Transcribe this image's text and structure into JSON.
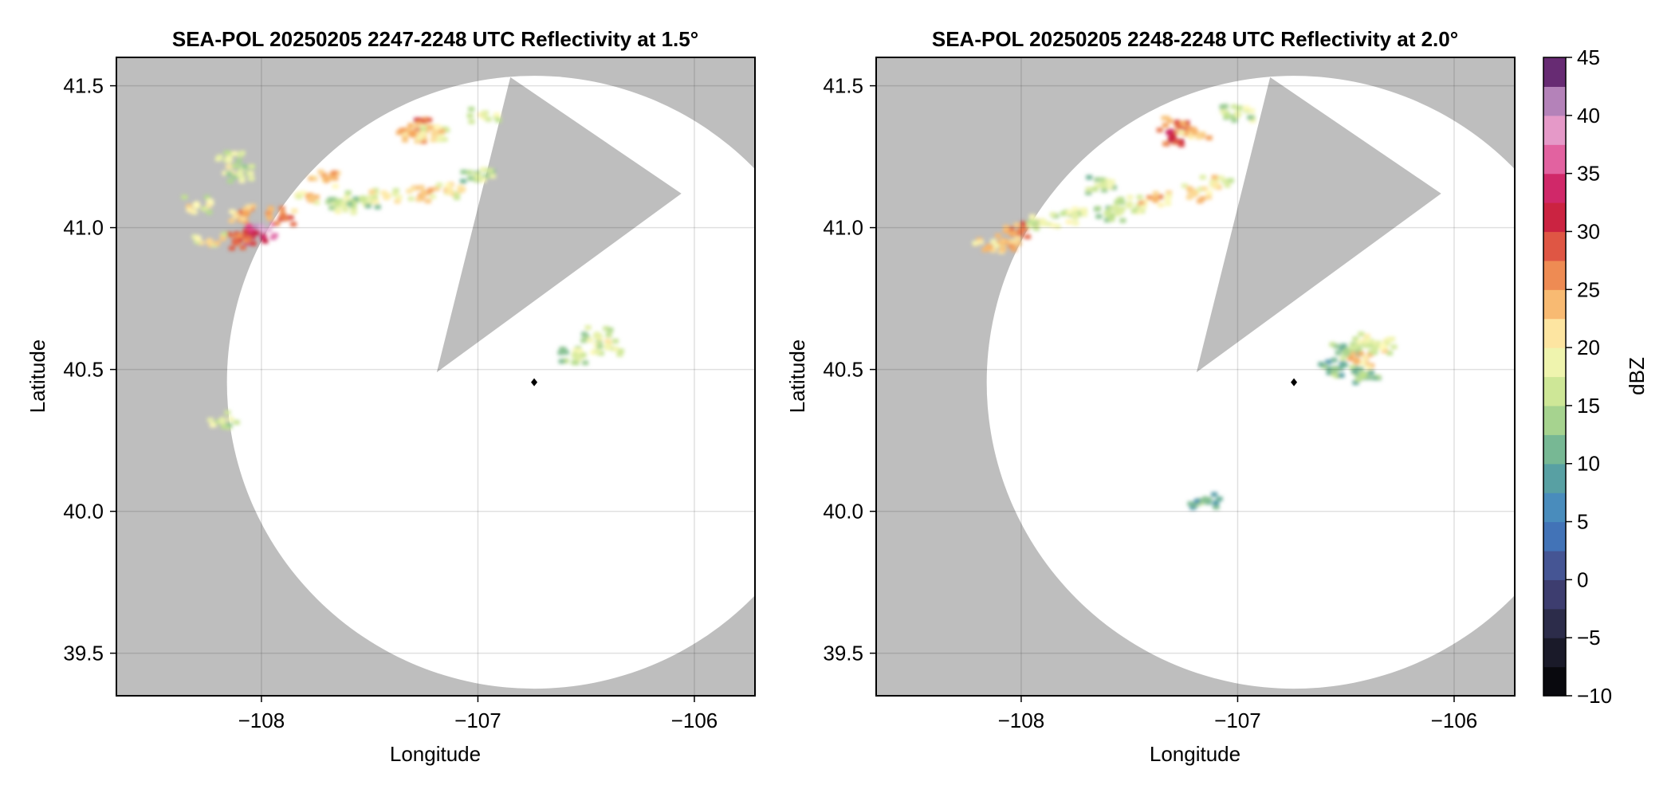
{
  "figure": {
    "colorbar": {
      "label": "dBZ",
      "min": -10,
      "max": 45,
      "step": 2.5,
      "ticks": [
        -10,
        -5,
        0,
        5,
        10,
        15,
        20,
        25,
        30,
        35,
        40,
        45
      ],
      "tick_labels": [
        "−10",
        "−5",
        "0",
        "5",
        "10",
        "15",
        "20",
        "25",
        "30",
        "35",
        "40",
        "45"
      ]
    }
  },
  "chart_data": [
    {
      "type": "heatmap",
      "title": "SEA-POL 20250205 2247-2248 UTC Reflectivity at 1.5°",
      "xlabel": "Longitude",
      "ylabel": "Latitude",
      "xlim": [
        -108.67,
        -105.72
      ],
      "ylim": [
        39.35,
        41.6
      ],
      "xticks": [
        -108,
        -107,
        -106
      ],
      "xtick_labels": [
        "−108",
        "−107",
        "−106"
      ],
      "yticks": [
        39.5,
        40.0,
        40.5,
        41.0,
        41.5
      ],
      "ytick_labels": [
        "39.5",
        "40.0",
        "40.5",
        "41.0",
        "41.5"
      ],
      "grid": true,
      "colorbar_label": "dBZ",
      "radar": {
        "lon": -106.74,
        "lat": 40.455,
        "range_lat_deg": 1.08
      },
      "blocked_sector_vertices": [
        [
          -107.19,
          40.49
        ],
        [
          -106.85,
          41.53
        ],
        [
          -106.06,
          41.12
        ]
      ],
      "echoes": [
        {
          "lon": -107.25,
          "lat": 41.36,
          "dbz": 29
        },
        {
          "lon": -107.3,
          "lat": 41.33,
          "dbz": 25
        },
        {
          "lon": -107.2,
          "lat": 41.33,
          "dbz": 22
        },
        {
          "lon": -106.97,
          "lat": 41.4,
          "dbz": 18
        },
        {
          "lon": -108.07,
          "lat": 41.05,
          "dbz": 25
        },
        {
          "lon": -108.0,
          "lat": 40.99,
          "dbz": 40
        },
        {
          "lon": -108.05,
          "lat": 40.97,
          "dbz": 33
        },
        {
          "lon": -107.9,
          "lat": 41.04,
          "dbz": 27
        },
        {
          "lon": -107.77,
          "lat": 41.1,
          "dbz": 23
        },
        {
          "lon": -107.7,
          "lat": 41.17,
          "dbz": 24
        },
        {
          "lon": -108.12,
          "lat": 40.95,
          "dbz": 28
        },
        {
          "lon": -108.24,
          "lat": 40.95,
          "dbz": 22
        },
        {
          "lon": -107.62,
          "lat": 41.08,
          "dbz": 18
        },
        {
          "lon": -107.53,
          "lat": 41.1,
          "dbz": 16
        },
        {
          "lon": -107.42,
          "lat": 41.11,
          "dbz": 21
        },
        {
          "lon": -107.25,
          "lat": 41.12,
          "dbz": 23
        },
        {
          "lon": -107.13,
          "lat": 41.13,
          "dbz": 21
        },
        {
          "lon": -107.0,
          "lat": 41.18,
          "dbz": 17
        },
        {
          "lon": -108.15,
          "lat": 41.24,
          "dbz": 19
        },
        {
          "lon": -108.1,
          "lat": 41.19,
          "dbz": 18
        },
        {
          "lon": -108.3,
          "lat": 41.08,
          "dbz": 20
        },
        {
          "lon": -106.45,
          "lat": 40.62,
          "dbz": 18
        },
        {
          "lon": -106.4,
          "lat": 40.58,
          "dbz": 19
        },
        {
          "lon": -106.55,
          "lat": 40.55,
          "dbz": 17
        },
        {
          "lon": -108.18,
          "lat": 40.32,
          "dbz": 18
        }
      ]
    },
    {
      "type": "heatmap",
      "title": "SEA-POL 20250205 2248-2248 UTC Reflectivity at 2.0°",
      "xlabel": "Longitude",
      "ylabel": "Latitude",
      "xlim": [
        -108.67,
        -105.72
      ],
      "ylim": [
        39.35,
        41.6
      ],
      "xticks": [
        -108,
        -107,
        -106
      ],
      "xtick_labels": [
        "−108",
        "−107",
        "−106"
      ],
      "yticks": [
        39.5,
        40.0,
        40.5,
        41.0,
        41.5
      ],
      "ytick_labels": [
        "39.5",
        "40.0",
        "40.5",
        "41.0",
        "41.5"
      ],
      "grid": true,
      "colorbar_label": "dBZ",
      "radar": {
        "lon": -106.74,
        "lat": 40.455,
        "range_lat_deg": 1.08
      },
      "blocked_sector_vertices": [
        [
          -107.19,
          40.49
        ],
        [
          -106.85,
          41.53
        ],
        [
          -106.06,
          41.12
        ]
      ],
      "echoes": [
        {
          "lon": -107.27,
          "lat": 41.36,
          "dbz": 28
        },
        {
          "lon": -107.3,
          "lat": 41.32,
          "dbz": 31
        },
        {
          "lon": -107.2,
          "lat": 41.34,
          "dbz": 24
        },
        {
          "lon": -107.0,
          "lat": 41.4,
          "dbz": 18
        },
        {
          "lon": -108.0,
          "lat": 40.99,
          "dbz": 27
        },
        {
          "lon": -108.08,
          "lat": 40.95,
          "dbz": 25
        },
        {
          "lon": -107.9,
          "lat": 41.02,
          "dbz": 19
        },
        {
          "lon": -107.75,
          "lat": 41.04,
          "dbz": 18
        },
        {
          "lon": -107.6,
          "lat": 41.05,
          "dbz": 16
        },
        {
          "lon": -107.5,
          "lat": 41.08,
          "dbz": 18
        },
        {
          "lon": -107.38,
          "lat": 41.1,
          "dbz": 24
        },
        {
          "lon": -107.2,
          "lat": 41.12,
          "dbz": 22
        },
        {
          "lon": -107.1,
          "lat": 41.15,
          "dbz": 21
        },
        {
          "lon": -107.62,
          "lat": 41.15,
          "dbz": 17
        },
        {
          "lon": -108.15,
          "lat": 40.93,
          "dbz": 24
        },
        {
          "lon": -106.5,
          "lat": 40.56,
          "dbz": 14
        },
        {
          "lon": -106.45,
          "lat": 40.53,
          "dbz": 24
        },
        {
          "lon": -106.4,
          "lat": 40.6,
          "dbz": 19
        },
        {
          "lon": -106.55,
          "lat": 40.5,
          "dbz": 13
        },
        {
          "lon": -106.33,
          "lat": 40.58,
          "dbz": 20
        },
        {
          "lon": -106.42,
          "lat": 40.48,
          "dbz": 15
        },
        {
          "lon": -107.15,
          "lat": 40.04,
          "dbz": 12
        }
      ]
    }
  ]
}
